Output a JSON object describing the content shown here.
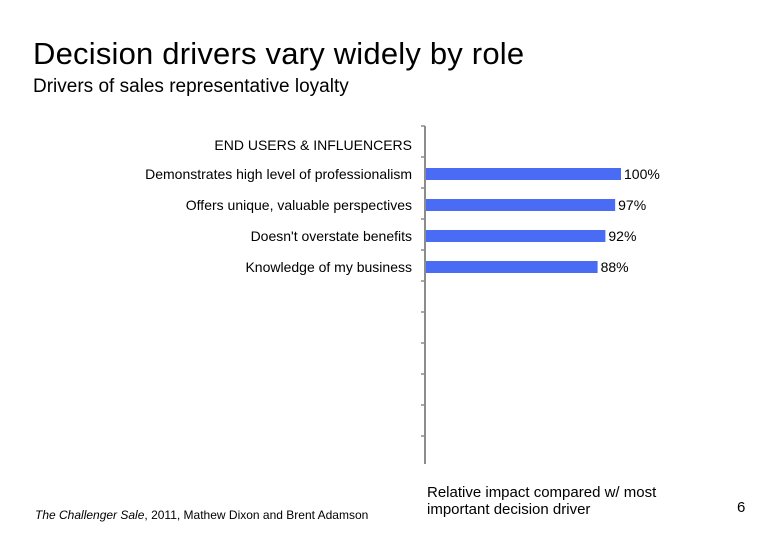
{
  "slide": {
    "title": "Decision drivers vary widely by role",
    "subtitle": "Drivers of sales representative loyalty",
    "page_number": "6"
  },
  "footer": {
    "book_title": "The Challenger Sale",
    "source_rest": ", 2011, Mathew Dixon and Brent Adamson"
  },
  "chart_data": {
    "type": "bar",
    "orientation": "horizontal",
    "group_label": "END USERS & INFLUENCERS",
    "categories": [
      "Demonstrates high level of professionalism",
      "Offers unique, valuable perspectives",
      "Doesn't overstate benefits",
      "Knowledge of my business"
    ],
    "values": [
      100,
      97,
      92,
      88
    ],
    "value_labels": [
      "100%",
      "97%",
      "92%",
      "88%"
    ],
    "xlim": [
      0,
      100
    ],
    "xlabel": "Relative impact compared w/ most important decision driver",
    "bar_color": "#4a6cf4",
    "grid": false,
    "legend": "none"
  }
}
